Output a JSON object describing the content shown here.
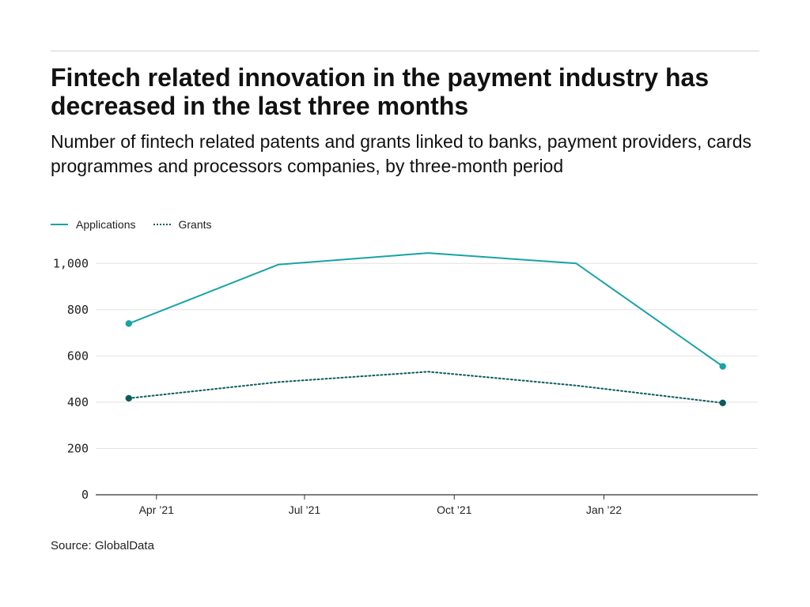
{
  "title": "Fintech related innovation in the payment industry has decreased in the last three months",
  "subtitle": "Number of fintech related patents and grants linked to banks, payment providers, cards programmes and processors companies, by three-month period",
  "source": "Source: GlobalData",
  "colors": {
    "applications": "#18a3a5",
    "grants": "#0c5c5e",
    "grid": "#e2e2e2",
    "axis": "#333333"
  },
  "chart_data": {
    "type": "line",
    "x": [
      "2021-03",
      "2021-06",
      "2021-09",
      "2021-12",
      "2022-03"
    ],
    "xticks": [
      "Apr ’21",
      "Jul ’21",
      "Oct ’21",
      "Jan ’22"
    ],
    "xtick_positions": [
      "2021-04",
      "2021-07",
      "2021-10",
      "2022-01"
    ],
    "yticks": [
      "0",
      "200",
      "400",
      "600",
      "800",
      "1,000"
    ],
    "ylim": [
      0,
      1100
    ],
    "series": [
      {
        "name": "Applications",
        "style": "solid",
        "values": [
          740,
          995,
          1045,
          1000,
          555
        ]
      },
      {
        "name": "Grants",
        "style": "dotted",
        "values": [
          417,
          487,
          532,
          472,
          397
        ]
      }
    ],
    "grid": true,
    "legend": "top-left"
  }
}
